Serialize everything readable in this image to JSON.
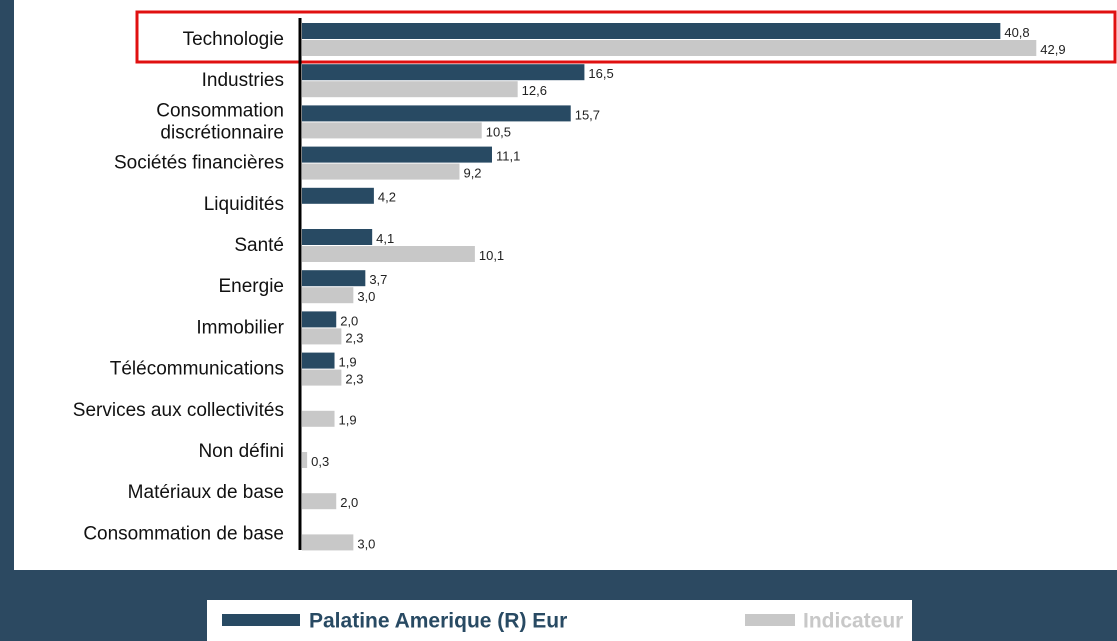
{
  "chart_data": {
    "type": "bar",
    "orientation": "horizontal",
    "categories": [
      "Technologie",
      "Industries",
      [
        "Consommation",
        "discrétionnaire"
      ],
      "Sociétés financières",
      "Liquidités",
      "Santé",
      "Energie",
      "Immobilier",
      "Télécommunications",
      "Services aux collectivités",
      "Non défini",
      "Matériaux de base",
      "Consommation de base"
    ],
    "series": [
      {
        "name": "Palatine Amerique (R) Eur",
        "color": "#284a63",
        "values": [
          40.8,
          16.5,
          15.7,
          11.1,
          4.2,
          4.1,
          3.7,
          2.0,
          1.9,
          null,
          null,
          null,
          null
        ],
        "value_labels": [
          "40,8",
          "16,5",
          "15,7",
          "11,1",
          "4,2",
          "4,1",
          "3,7",
          "2,0",
          "1,9",
          null,
          null,
          null,
          null
        ]
      },
      {
        "name": "Indicateur",
        "color": "#c8c8c8",
        "values": [
          42.9,
          12.6,
          10.5,
          9.2,
          null,
          10.1,
          3.0,
          2.3,
          2.3,
          1.9,
          0.3,
          2.0,
          3.0
        ],
        "value_labels": [
          "42,9",
          "12,6",
          "10,5",
          "9,2",
          null,
          "10,1",
          "3,0",
          "2,3",
          "2,3",
          "1,9",
          "0,3",
          "2,0",
          "3,0"
        ]
      }
    ],
    "xlim": [
      0,
      43
    ]
  }
}
